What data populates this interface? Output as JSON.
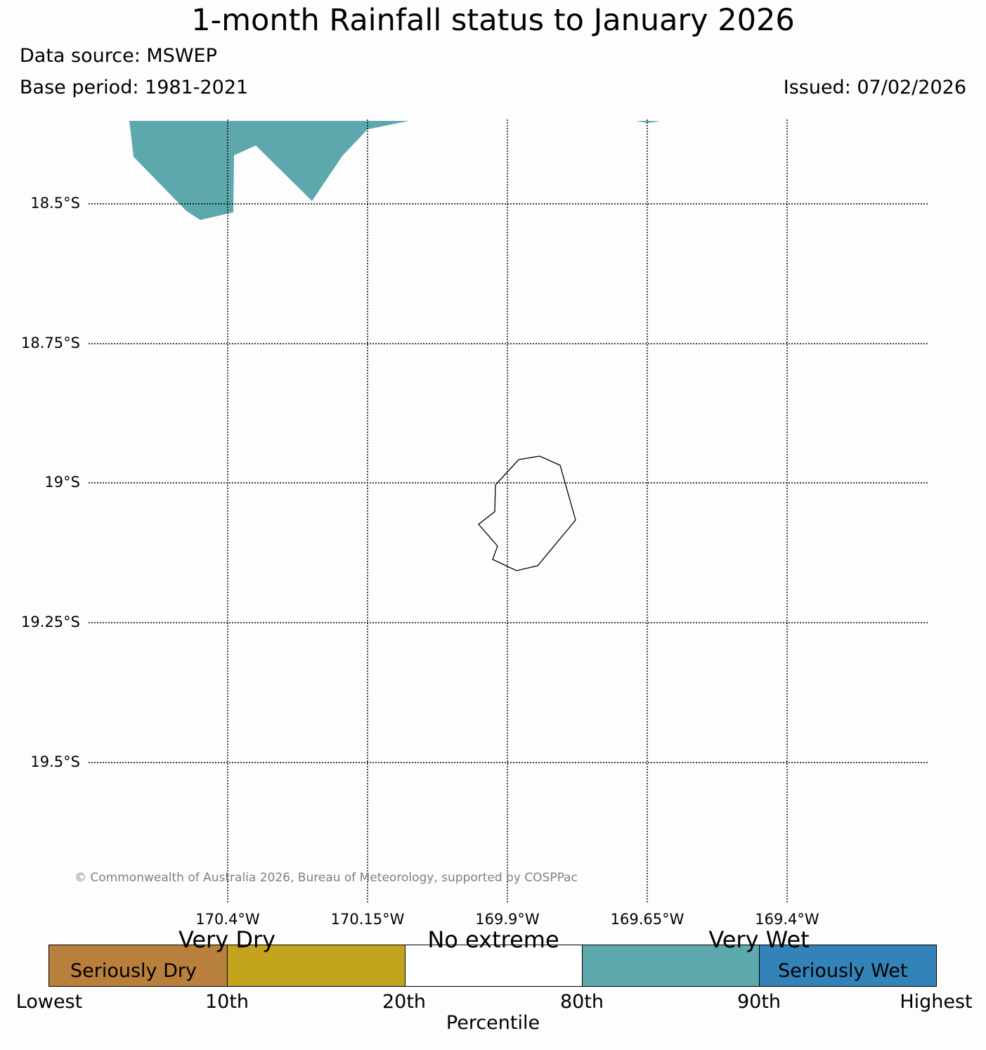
{
  "header": {
    "title": "1-month Rainfall status to January 2026",
    "data_source": "Data source: MSWEP",
    "base_period": "Base period: 1981-2021",
    "issued": "Issued: 07/02/2026"
  },
  "map": {
    "lat_labels": [
      "18.5°S",
      "18.75°S",
      "19°S",
      "19.25°S",
      "19.5°S"
    ],
    "lon_labels": [
      "170.4°W",
      "170.15°W",
      "169.9°W",
      "169.65°W",
      "169.4°W"
    ],
    "copyright": "© Commonwealth of Australia 2026, Bureau of Meteorology, supported by COSPPac",
    "wet_area_color": "#5da8ad",
    "coastline_color": "#000000"
  },
  "legend": {
    "category_labels": {
      "very_dry": "Very Dry",
      "no_extreme": "No extreme",
      "very_wet": "Very Wet"
    },
    "inner_labels": {
      "seriously_dry": "Seriously Dry",
      "seriously_wet": "Seriously Wet"
    },
    "ticks": [
      "Lowest",
      "10th",
      "20th",
      "80th",
      "90th",
      "Highest"
    ],
    "axis_label": "Percentile",
    "colors": [
      "#b97f3c",
      "#c4a41d",
      "#ffffff",
      "#5da8ad",
      "#3383b8"
    ]
  }
}
